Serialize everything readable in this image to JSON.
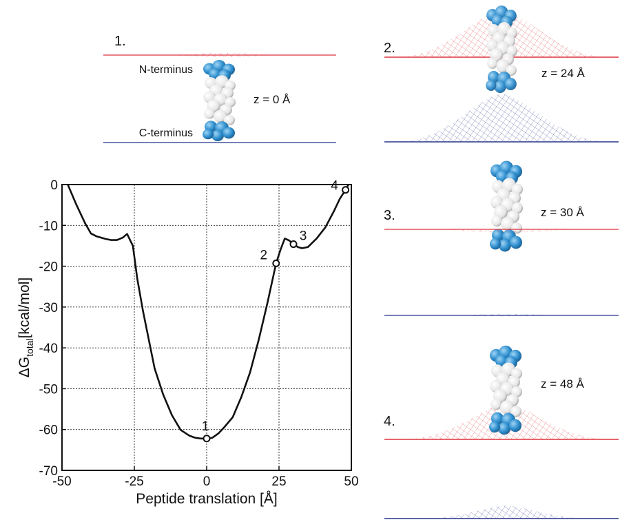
{
  "panels": [
    {
      "number": "1.",
      "z_label": "z = 0 Å",
      "n_label": "N-terminus",
      "c_label": "C-terminus"
    },
    {
      "number": "2.",
      "z_label": "z = 24 Å"
    },
    {
      "number": "3.",
      "z_label": "z = 30 Å"
    },
    {
      "number": "4.",
      "z_label": "z = 48 Å"
    }
  ],
  "colors": {
    "upper_membrane": "#e0303c",
    "lower_membrane": "#26338a",
    "terminus_atoms": "#2f8fcf",
    "backbone_atoms": "#ececec",
    "curve": "#111111"
  },
  "chart_data": {
    "type": "line",
    "title": "",
    "xlabel": "Peptide translation [Å]",
    "ylabel_main": "ΔG",
    "ylabel_sub": "total",
    "ylabel_unit": "[kcal/mol]",
    "xlim": [
      -50,
      50
    ],
    "ylim": [
      -70,
      0
    ],
    "xticks": [
      -50,
      -25,
      0,
      25,
      50
    ],
    "yticks": [
      0,
      -10,
      -20,
      -30,
      -40,
      -50,
      -60,
      -70
    ],
    "grid": true,
    "series": [
      {
        "x": [
          -48,
          -45,
          -42,
          -40,
          -38,
          -35,
          -33,
          -31,
          -29,
          -27.5,
          -25.5,
          -24,
          -22,
          -20,
          -18,
          -15,
          -12,
          -9,
          -6,
          -4,
          -2,
          0,
          2,
          4,
          6,
          9,
          12,
          15,
          18,
          21,
          24,
          25.5,
          27,
          28.5,
          30,
          31.5,
          33,
          35,
          38,
          41,
          44,
          46,
          48,
          49
        ],
        "y": [
          0,
          -5,
          -9.5,
          -12,
          -12.7,
          -13.3,
          -13.6,
          -13.6,
          -13,
          -12.1,
          -15,
          -23,
          -31,
          -38,
          -45,
          -51.5,
          -56.5,
          -60.1,
          -61.5,
          -62,
          -62.2,
          -62.2,
          -62,
          -61,
          -59.5,
          -57,
          -52,
          -46,
          -38,
          -29,
          -19.3,
          -16,
          -13.2,
          -13.7,
          -14.6,
          -15.3,
          -15.6,
          -15.3,
          -13.2,
          -10.5,
          -6.5,
          -3.5,
          -1.3,
          0
        ]
      }
    ],
    "markers": [
      {
        "label": "1",
        "x": 0,
        "y": -62.2
      },
      {
        "label": "2",
        "x": 24,
        "y": -19.3
      },
      {
        "label": "3",
        "x": 30,
        "y": -14.6
      },
      {
        "label": "4",
        "x": 48,
        "y": -1.3
      }
    ]
  }
}
